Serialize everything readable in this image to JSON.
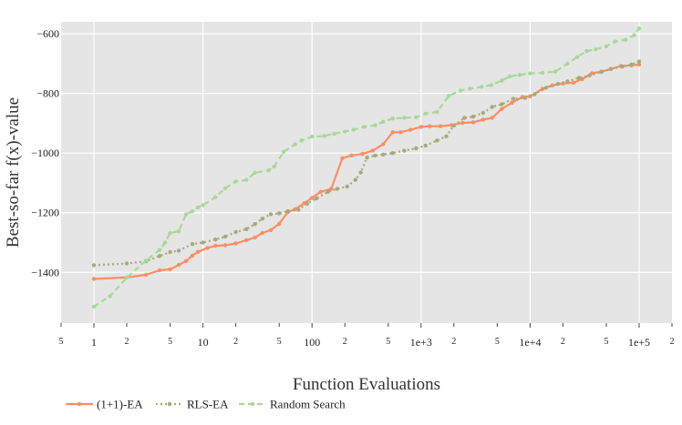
{
  "chart_data": {
    "type": "line",
    "xlabel": "Function Evaluations",
    "ylabel": "Best-so-far f(x)-value",
    "x_scale": "log",
    "xlim": [
      0.5,
      200000
    ],
    "ylim": [
      -1570,
      -560
    ],
    "grid": true,
    "legend_position": "bottom-left",
    "x_ticks_major": [
      {
        "value": 1,
        "label": "1"
      },
      {
        "value": 10,
        "label": "10"
      },
      {
        "value": 100,
        "label": "100"
      },
      {
        "value": 1000,
        "label": "1e+3"
      },
      {
        "value": 10000,
        "label": "1e+4"
      },
      {
        "value": 100000,
        "label": "1e+5"
      }
    ],
    "x_ticks_minor": [
      {
        "value": 0.5,
        "label": "5"
      },
      {
        "value": 2,
        "label": "2"
      },
      {
        "value": 5,
        "label": "5"
      },
      {
        "value": 20,
        "label": "2"
      },
      {
        "value": 50,
        "label": "5"
      },
      {
        "value": 200,
        "label": "2"
      },
      {
        "value": 500,
        "label": "5"
      },
      {
        "value": 2000,
        "label": "2"
      },
      {
        "value": 5000,
        "label": "5"
      },
      {
        "value": 20000,
        "label": "2"
      },
      {
        "value": 50000,
        "label": "5"
      },
      {
        "value": 200000,
        "label": "2"
      }
    ],
    "y_ticks": [
      {
        "value": -1400,
        "label": "−1400"
      },
      {
        "value": -1200,
        "label": "−1200"
      },
      {
        "value": -1000,
        "label": "−1000"
      },
      {
        "value": -800,
        "label": "−800"
      },
      {
        "value": -600,
        "label": "−600"
      }
    ],
    "series": [
      {
        "name": "(1+1)-EA",
        "color": "#fc8d62",
        "dash": "solid",
        "points": [
          [
            1,
            -1422
          ],
          [
            2,
            -1417
          ],
          [
            3,
            -1408
          ],
          [
            4,
            -1393
          ],
          [
            5,
            -1390
          ],
          [
            6,
            -1375
          ],
          [
            7,
            -1362
          ],
          [
            8,
            -1344
          ],
          [
            9,
            -1331
          ],
          [
            11,
            -1318
          ],
          [
            13,
            -1311
          ],
          [
            16,
            -1309
          ],
          [
            20,
            -1303
          ],
          [
            25,
            -1292
          ],
          [
            30,
            -1283
          ],
          [
            35,
            -1268
          ],
          [
            42,
            -1258
          ],
          [
            50,
            -1237
          ],
          [
            60,
            -1198
          ],
          [
            70,
            -1188
          ],
          [
            85,
            -1168
          ],
          [
            100,
            -1150
          ],
          [
            120,
            -1130
          ],
          [
            150,
            -1120
          ],
          [
            190,
            -1017
          ],
          [
            230,
            -1008
          ],
          [
            290,
            -1003
          ],
          [
            360,
            -992
          ],
          [
            450,
            -970
          ],
          [
            550,
            -930
          ],
          [
            650,
            -930
          ],
          [
            800,
            -922
          ],
          [
            1000,
            -912
          ],
          [
            1200,
            -910
          ],
          [
            1500,
            -910
          ],
          [
            1900,
            -906
          ],
          [
            2400,
            -899
          ],
          [
            3000,
            -897
          ],
          [
            3700,
            -888
          ],
          [
            4500,
            -882
          ],
          [
            5500,
            -852
          ],
          [
            6800,
            -832
          ],
          [
            8500,
            -812
          ],
          [
            10000,
            -810
          ],
          [
            13000,
            -785
          ],
          [
            16000,
            -773
          ],
          [
            20000,
            -767
          ],
          [
            25000,
            -764
          ],
          [
            30000,
            -752
          ],
          [
            37000,
            -732
          ],
          [
            45000,
            -727
          ],
          [
            55000,
            -718
          ],
          [
            68000,
            -708
          ],
          [
            85000,
            -706
          ],
          [
            100000,
            -703
          ]
        ]
      },
      {
        "name": "RLS-EA",
        "color": "#a6a97a",
        "dash": "dot",
        "points": [
          [
            1,
            -1376
          ],
          [
            2,
            -1370
          ],
          [
            3,
            -1363
          ],
          [
            4,
            -1345
          ],
          [
            5,
            -1332
          ],
          [
            6,
            -1327
          ],
          [
            8,
            -1305
          ],
          [
            10,
            -1300
          ],
          [
            13,
            -1290
          ],
          [
            16,
            -1280
          ],
          [
            20,
            -1265
          ],
          [
            25,
            -1255
          ],
          [
            30,
            -1238
          ],
          [
            35,
            -1220
          ],
          [
            42,
            -1205
          ],
          [
            50,
            -1202
          ],
          [
            60,
            -1195
          ],
          [
            75,
            -1190
          ],
          [
            90,
            -1170
          ],
          [
            110,
            -1152
          ],
          [
            140,
            -1130
          ],
          [
            170,
            -1120
          ],
          [
            210,
            -1112
          ],
          [
            250,
            -1090
          ],
          [
            280,
            -1065
          ],
          [
            320,
            -1015
          ],
          [
            380,
            -1008
          ],
          [
            450,
            -1005
          ],
          [
            550,
            -1000
          ],
          [
            700,
            -992
          ],
          [
            900,
            -984
          ],
          [
            1100,
            -975
          ],
          [
            1400,
            -958
          ],
          [
            1700,
            -944
          ],
          [
            2000,
            -908
          ],
          [
            2500,
            -882
          ],
          [
            3000,
            -878
          ],
          [
            3700,
            -865
          ],
          [
            4500,
            -845
          ],
          [
            5500,
            -836
          ],
          [
            7000,
            -818
          ],
          [
            9000,
            -815
          ],
          [
            11000,
            -803
          ],
          [
            14000,
            -781
          ],
          [
            18000,
            -768
          ],
          [
            22000,
            -760
          ],
          [
            28000,
            -748
          ],
          [
            35000,
            -740
          ],
          [
            45000,
            -728
          ],
          [
            55000,
            -718
          ],
          [
            70000,
            -710
          ],
          [
            85000,
            -703
          ],
          [
            100000,
            -693
          ]
        ]
      },
      {
        "name": "Random Search",
        "color": "#a6d996",
        "dash": "dash",
        "points": [
          [
            1,
            -1515
          ],
          [
            1.4,
            -1480
          ],
          [
            2,
            -1418
          ],
          [
            3,
            -1360
          ],
          [
            4,
            -1325
          ],
          [
            4.5,
            -1300
          ],
          [
            5,
            -1268
          ],
          [
            6,
            -1262
          ],
          [
            7,
            -1205
          ],
          [
            8,
            -1195
          ],
          [
            9,
            -1182
          ],
          [
            10,
            -1175
          ],
          [
            13,
            -1148
          ],
          [
            16,
            -1118
          ],
          [
            20,
            -1095
          ],
          [
            25,
            -1090
          ],
          [
            30,
            -1066
          ],
          [
            40,
            -1058
          ],
          [
            45,
            -1045
          ],
          [
            55,
            -996
          ],
          [
            70,
            -970
          ],
          [
            80,
            -958
          ],
          [
            100,
            -945
          ],
          [
            130,
            -943
          ],
          [
            160,
            -935
          ],
          [
            200,
            -928
          ],
          [
            240,
            -922
          ],
          [
            300,
            -912
          ],
          [
            380,
            -907
          ],
          [
            450,
            -895
          ],
          [
            550,
            -884
          ],
          [
            700,
            -882
          ],
          [
            900,
            -880
          ],
          [
            1100,
            -868
          ],
          [
            1400,
            -862
          ],
          [
            1800,
            -808
          ],
          [
            2300,
            -790
          ],
          [
            2800,
            -784
          ],
          [
            3600,
            -778
          ],
          [
            4400,
            -772
          ],
          [
            5500,
            -757
          ],
          [
            6500,
            -743
          ],
          [
            8000,
            -738
          ],
          [
            10000,
            -733
          ],
          [
            13000,
            -731
          ],
          [
            17000,
            -727
          ],
          [
            22000,
            -700
          ],
          [
            27000,
            -678
          ],
          [
            33000,
            -658
          ],
          [
            40000,
            -652
          ],
          [
            50000,
            -642
          ],
          [
            60000,
            -626
          ],
          [
            75000,
            -620
          ],
          [
            90000,
            -605
          ],
          [
            100000,
            -582
          ]
        ]
      }
    ]
  }
}
